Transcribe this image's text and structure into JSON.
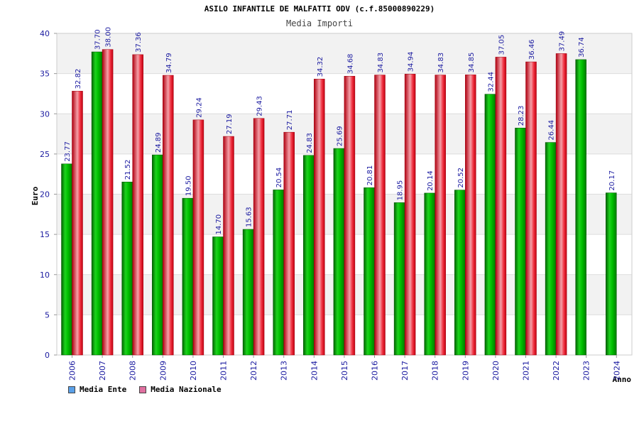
{
  "chart_data": {
    "type": "bar",
    "title": "ASILO INFANTILE DE MALFATTI ODV (c.f.85000890229)",
    "subtitle": "Media Importi",
    "xlabel": "Anno",
    "ylabel": "Euro",
    "ylim": [
      0,
      40
    ],
    "yticks": [
      "0",
      "5",
      "10",
      "15",
      "20",
      "25",
      "30",
      "35",
      "40"
    ],
    "grid": true,
    "categories": [
      "2006",
      "2007",
      "2008",
      "2009",
      "2010",
      "2011",
      "2012",
      "2013",
      "2014",
      "2015",
      "2016",
      "2017",
      "2018",
      "2019",
      "2020",
      "2021",
      "2022",
      "2023",
      "2024"
    ],
    "series": [
      {
        "name": "Media Ente",
        "color": "#00b000",
        "legend_color": "#5aa0e8",
        "values": [
          23.77,
          37.7,
          21.52,
          24.89,
          19.5,
          14.7,
          15.63,
          20.54,
          24.83,
          25.69,
          20.81,
          18.95,
          20.14,
          20.52,
          32.44,
          28.23,
          26.44,
          36.74,
          20.17
        ],
        "labels": [
          "23.77",
          "37.70",
          "21.52",
          "24.89",
          "19.50",
          "14.70",
          "15.63",
          "20.54",
          "24.83",
          "25.69",
          "20.81",
          "18.95",
          "20.14",
          "20.52",
          "32.44",
          "28.23",
          "26.44",
          "36.74",
          "20.17"
        ]
      },
      {
        "name": "Media Nazionale",
        "color": "#e8202a",
        "legend_color": "#e070a0",
        "values": [
          32.82,
          38.0,
          37.36,
          34.79,
          29.24,
          27.19,
          29.43,
          27.71,
          34.32,
          34.68,
          34.83,
          34.94,
          34.83,
          34.85,
          37.05,
          36.46,
          37.49,
          null,
          null
        ],
        "labels": [
          "32.82",
          "38.00",
          "37.36",
          "34.79",
          "29.24",
          "27.19",
          "29.43",
          "27.71",
          "34.32",
          "34.68",
          "34.83",
          "34.94",
          "34.83",
          "34.85",
          "37.05",
          "36.46",
          "37.49",
          "",
          ""
        ]
      }
    ]
  }
}
